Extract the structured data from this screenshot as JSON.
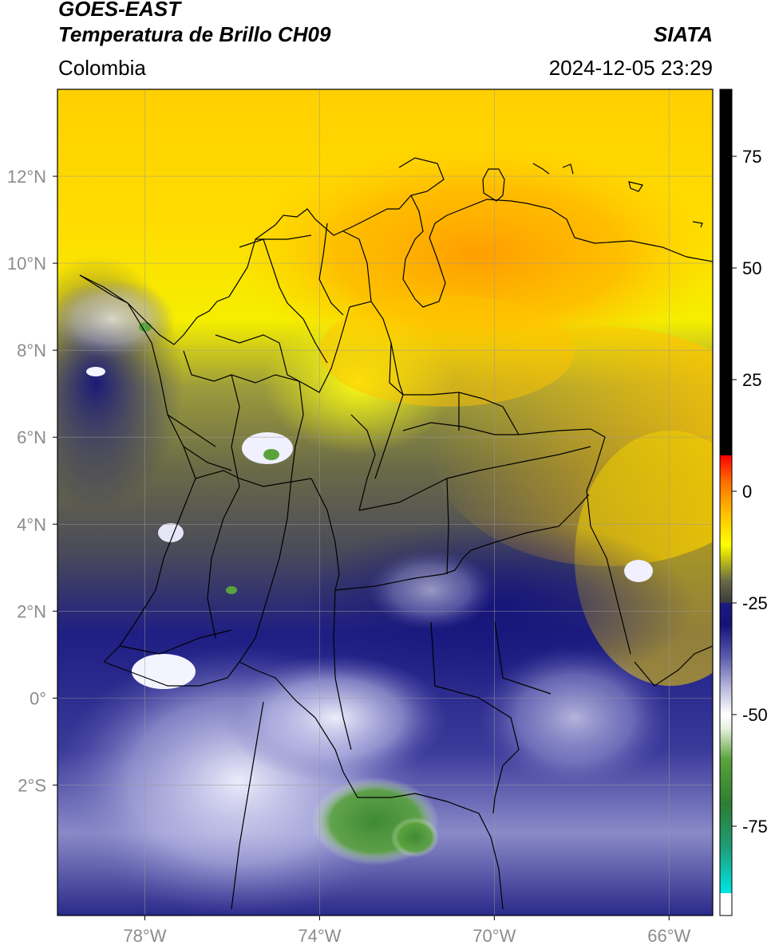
{
  "header": {
    "satellite": "GOES-EAST",
    "product": "Temperatura de Brillo CH09",
    "organization": "SIATA",
    "region": "Colombia",
    "timestamp": "2024-12-05 23:29"
  },
  "map": {
    "lon_range": [
      -80,
      -65
    ],
    "lat_range": [
      -5,
      14
    ],
    "lat_ticks": [
      {
        "value": 12,
        "label": "12°N"
      },
      {
        "value": 10,
        "label": "10°N"
      },
      {
        "value": 8,
        "label": "8°N"
      },
      {
        "value": 6,
        "label": "6°N"
      },
      {
        "value": 4,
        "label": "4°N"
      },
      {
        "value": 2,
        "label": "2°N"
      },
      {
        "value": 0,
        "label": "0°"
      },
      {
        "value": -2,
        "label": "2°S"
      }
    ],
    "lon_ticks": [
      {
        "value": -78,
        "label": "78°W"
      },
      {
        "value": -74,
        "label": "74°W"
      },
      {
        "value": -70,
        "label": "70°W"
      },
      {
        "value": -66,
        "label": "66°W"
      }
    ],
    "grid": true,
    "tick_color": "#8c8c8c"
  },
  "colorbar": {
    "range": [
      -95,
      90
    ],
    "ticks": [
      {
        "value": 75,
        "label": "75"
      },
      {
        "value": 50,
        "label": "50"
      },
      {
        "value": 25,
        "label": "25"
      },
      {
        "value": 0,
        "label": "0"
      },
      {
        "value": -25,
        "label": "-25"
      },
      {
        "value": -50,
        "label": "-50"
      },
      {
        "value": -75,
        "label": "-75"
      }
    ],
    "stops": [
      {
        "value": -95,
        "color": "#ffffff"
      },
      {
        "value": -90,
        "color": "#ffffff"
      },
      {
        "value": -90,
        "color": "#00e5e5"
      },
      {
        "value": -80,
        "color": "#1e9e7a"
      },
      {
        "value": -70,
        "color": "#2e7d32"
      },
      {
        "value": -60,
        "color": "#5aa33c"
      },
      {
        "value": -53,
        "color": "#e8f2e0"
      },
      {
        "value": -50,
        "color": "#ffffff"
      },
      {
        "value": -44,
        "color": "#b8b8dc"
      },
      {
        "value": -37,
        "color": "#5a5aac"
      },
      {
        "value": -30,
        "color": "#141478"
      },
      {
        "value": -25,
        "color": "#1a1a80"
      },
      {
        "value": -25,
        "color": "#3a3a3a"
      },
      {
        "value": -20,
        "color": "#6a6a48"
      },
      {
        "value": -15,
        "color": "#c8c810"
      },
      {
        "value": -12,
        "color": "#ffff00"
      },
      {
        "value": -5,
        "color": "#ffc000"
      },
      {
        "value": 2,
        "color": "#ff7000"
      },
      {
        "value": 8,
        "color": "#ff0000"
      },
      {
        "value": 8,
        "color": "#000000"
      },
      {
        "value": 90,
        "color": "#000000"
      }
    ]
  }
}
